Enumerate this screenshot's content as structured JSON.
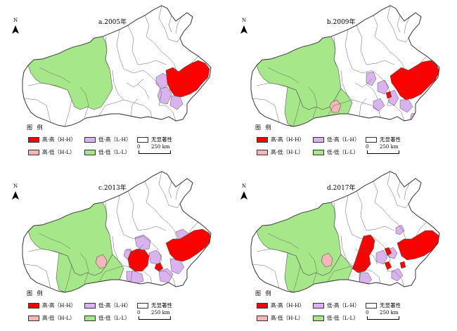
{
  "colors": {
    "hh": "#ff0000",
    "hl": "#f4b6b6",
    "lh": "#d9b3ef",
    "ll": "#a6e889",
    "ns": "#ffffff",
    "border": "#555555"
  },
  "icons": {
    "north_arrow": "north-arrow-icon"
  },
  "north_label": "N",
  "legend": {
    "title": "图 例",
    "hh": "高-高（H-H）",
    "lh": "低-高（L-H）",
    "ns": "无显著性",
    "hl": "高-低（H-L）",
    "ll": "低-低（L-L）",
    "scale_zero": "0",
    "scale_text": "250 km"
  },
  "panels": [
    {
      "title": "a.2005年",
      "year": 2005,
      "clusters": [
        "低-低（L-L）",
        "低-高（L-H）",
        "高-高（H-H）"
      ]
    },
    {
      "title": "b.2009年",
      "year": 2009,
      "clusters": [
        "低-低（L-L）",
        "低-高（L-H）",
        "高-高（H-H）",
        "高-低（H-L）"
      ]
    },
    {
      "title": "c.2013年",
      "year": 2013,
      "clusters": [
        "低-低（L-L）",
        "低-高（L-H）",
        "高-高（H-H）",
        "高-低（H-L）"
      ]
    },
    {
      "title": "d.2017年",
      "year": 2017,
      "clusters": [
        "低-低（L-L）",
        "低-高（L-H）",
        "高-高（H-H）",
        "高-低（H-L）"
      ]
    }
  ]
}
